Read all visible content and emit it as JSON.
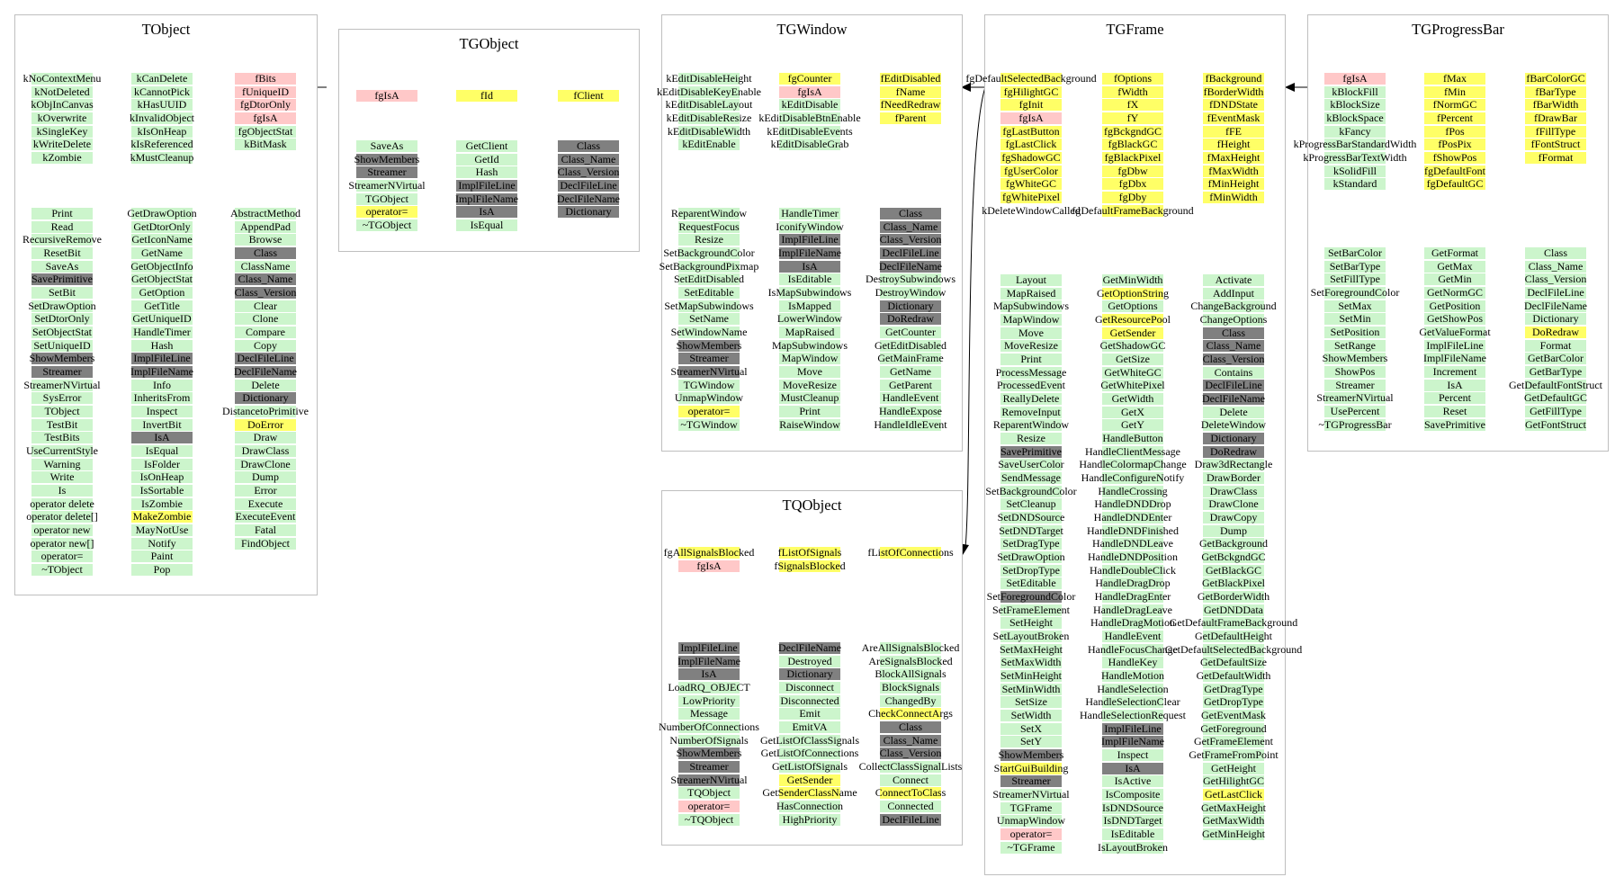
{
  "colors": {
    "public_member": "#ccf5cc",
    "highlighted": "#ffff66",
    "protected": "#ffc8c8",
    "private": "#808080",
    "border": "#bfbfbf"
  },
  "classes": [
    {
      "name": "TObject",
      "data_columns": [
        [
          "kNoContextMenu",
          "kNotDeleted",
          "kObjInCanvas",
          "kOverwrite",
          "kSingleKey",
          "kWriteDelete",
          "kZombie"
        ],
        [
          "kCanDelete",
          "kCannotPick",
          "kHasUUID",
          "kInvalidObject",
          "kIsOnHeap",
          "kIsReferenced",
          "kMustCleanup"
        ],
        [
          "fBits",
          "fUniqueID",
          "fgDtorOnly",
          "fgIsA",
          "fgObjectStat",
          "kBitMask"
        ]
      ],
      "method_columns": [
        [
          "Print",
          "Read",
          "RecursiveRemove",
          "ResetBit",
          "SaveAs",
          "SavePrimitive",
          "SetBit",
          "SetDrawOption",
          "SetDtorOnly",
          "SetObjectStat",
          "SetUniqueID",
          "ShowMembers",
          "Streamer",
          "StreamerNVirtual",
          "SysError",
          "TObject",
          "TestBit",
          "TestBits",
          "UseCurrentStyle",
          "Warning",
          "Write",
          "Is",
          "operator delete",
          "operator delete[]",
          "operator new",
          "operator new[]",
          "operator=",
          "~TObject"
        ],
        [
          "GetDrawOption",
          "GetDtorOnly",
          "GetIconName",
          "GetName",
          "GetObjectInfo",
          "GetObjectStat",
          "GetOption",
          "GetTitle",
          "GetUniqueID",
          "HandleTimer",
          "Hash",
          "ImplFileLine",
          "ImplFileName",
          "Info",
          "InheritsFrom",
          "Inspect",
          "InvertBit",
          "IsA",
          "IsEqual",
          "IsFolder",
          "IsOnHeap",
          "IsSortable",
          "IsZombie",
          "MakeZombie",
          "MayNotUse",
          "Notify",
          "Paint",
          "Pop"
        ],
        [
          "AbstractMethod",
          "AppendPad",
          "Browse",
          "Class",
          "ClassName",
          "Class_Name",
          "Class_Version",
          "Clear",
          "Clone",
          "Compare",
          "Copy",
          "DeclFileLine",
          "DeclFileName",
          "Delete",
          "Dictionary",
          "DistancetoPrimitive",
          "DoError",
          "Draw",
          "DrawClass",
          "DrawClone",
          "Dump",
          "Error",
          "Execute",
          "ExecuteEvent",
          "Fatal",
          "FindObject"
        ]
      ]
    },
    {
      "name": "TGObject",
      "data_columns": [
        [
          "fgIsA"
        ],
        [
          "fId"
        ],
        [
          "fClient"
        ]
      ],
      "method_columns": [
        [
          "SaveAs",
          "ShowMembers",
          "Streamer",
          "StreamerNVirtual",
          "TGObject",
          "operator=",
          "~TGObject"
        ],
        [
          "GetClient",
          "GetId",
          "Hash",
          "ImplFileLine",
          "ImplFileName",
          "IsA",
          "IsEqual"
        ],
        [
          "Class",
          "Class_Name",
          "Class_Version",
          "DeclFileLine",
          "DeclFileName",
          "Dictionary"
        ]
      ]
    },
    {
      "name": "TGWindow",
      "data_columns": [
        [
          "kEditDisableHeight",
          "kEditDisableKeyEnable",
          "kEditDisableLayout",
          "kEditDisableResize",
          "kEditDisableWidth",
          "kEditEnable"
        ],
        [
          "fgCounter",
          "fgIsA",
          "kEditDisable",
          "kEditDisableBtnEnable",
          "kEditDisableEvents",
          "kEditDisableGrab"
        ],
        [
          "fEditDisabled",
          "fName",
          "fNeedRedraw",
          "fParent"
        ]
      ],
      "method_columns": [
        [
          "ReparentWindow",
          "RequestFocus",
          "Resize",
          "SetBackgroundColor",
          "SetBackgroundPixmap",
          "SetEditDisabled",
          "SetEditable",
          "SetMapSubwindows",
          "SetName",
          "SetWindowName",
          "ShowMembers",
          "Streamer",
          "StreamerNVirtual",
          "TGWindow",
          "UnmapWindow",
          "operator=",
          "~TGWindow"
        ],
        [
          "HandleTimer",
          "IconifyWindow",
          "ImplFileLine",
          "ImplFileName",
          "IsA",
          "IsEditable",
          "IsMapSubwindows",
          "IsMapped",
          "LowerWindow",
          "MapRaised",
          "MapSubwindows",
          "MapWindow",
          "Move",
          "MoveResize",
          "MustCleanup",
          "Print",
          "RaiseWindow"
        ],
        [
          "Class",
          "Class_Name",
          "Class_Version",
          "DeclFileLine",
          "DeclFileName",
          "DestroySubwindows",
          "DestroyWindow",
          "Dictionary",
          "DoRedraw",
          "GetCounter",
          "GetEditDisabled",
          "GetMainFrame",
          "GetName",
          "GetParent",
          "HandleEvent",
          "HandleExpose",
          "HandleIdleEvent"
        ]
      ]
    },
    {
      "name": "TGFrame",
      "data_columns": [
        [
          "fgDefaultSelectedBackground",
          "fgHilightGC",
          "fgInit",
          "fgIsA",
          "fgLastButton",
          "fgLastClick",
          "fgShadowGC",
          "fgUserColor",
          "fgWhiteGC",
          "fgWhitePixel",
          "kDeleteWindowCalled"
        ],
        [
          "fOptions",
          "fWidth",
          "fX",
          "fY",
          "fgBckgndGC",
          "fgBlackGC",
          "fgBlackPixel",
          "fgDbw",
          "fgDbx",
          "fgDby",
          "fgDefaultFrameBackground"
        ],
        [
          "fBackground",
          "fBorderWidth",
          "fDNDState",
          "fEventMask",
          "fFE",
          "fHeight",
          "fMaxHeight",
          "fMaxWidth",
          "fMinHeight",
          "fMinWidth"
        ]
      ],
      "method_columns": [
        [
          "Layout",
          "MapRaised",
          "MapSubwindows",
          "MapWindow",
          "Move",
          "MoveResize",
          "Print",
          "ProcessMessage",
          "ProcessedEvent",
          "ReallyDelete",
          "RemoveInput",
          "ReparentWindow",
          "Resize",
          "SavePrimitive",
          "SaveUserColor",
          "SendMessage",
          "SetBackgroundColor",
          "SetCleanup",
          "SetDNDSource",
          "SetDNDTarget",
          "SetDragType",
          "SetDrawOption",
          "SetDropType",
          "SetEditable",
          "SetForegroundColor",
          "SetFrameElement",
          "SetHeight",
          "SetLayoutBroken",
          "SetMaxHeight",
          "SetMaxWidth",
          "SetMinHeight",
          "SetMinWidth",
          "SetSize",
          "SetWidth",
          "SetX",
          "SetY",
          "ShowMembers",
          "StartGuiBuilding",
          "Streamer",
          "StreamerNVirtual",
          "TGFrame",
          "UnmapWindow",
          "operator=",
          "~TGFrame"
        ],
        [
          "GetMinWidth",
          "GetOptionString",
          "GetOptions",
          "GetResourcePool",
          "GetSender",
          "GetShadowGC",
          "GetSize",
          "GetWhiteGC",
          "GetWhitePixel",
          "GetWidth",
          "GetX",
          "GetY",
          "HandleButton",
          "HandleClientMessage",
          "HandleColormapChange",
          "HandleConfigureNotify",
          "HandleCrossing",
          "HandleDNDDrop",
          "HandleDNDEnter",
          "HandleDNDFinished",
          "HandleDNDLeave",
          "HandleDNDPosition",
          "HandleDoubleClick",
          "HandleDragDrop",
          "HandleDragEnter",
          "HandleDragLeave",
          "HandleDragMotion",
          "HandleEvent",
          "HandleFocusChange",
          "HandleKey",
          "HandleMotion",
          "HandleSelection",
          "HandleSelectionClear",
          "HandleSelectionRequest",
          "ImplFileLine",
          "ImplFileName",
          "Inspect",
          "IsA",
          "IsActive",
          "IsComposite",
          "IsDNDSource",
          "IsDNDTarget",
          "IsEditable",
          "IsLayoutBroken"
        ],
        [
          "Activate",
          "AddInput",
          "ChangeBackground",
          "ChangeOptions",
          "Class",
          "Class_Name",
          "Class_Version",
          "Contains",
          "DeclFileLine",
          "DeclFileName",
          "Delete",
          "DeleteWindow",
          "Dictionary",
          "DoRedraw",
          "Draw3dRectangle",
          "DrawBorder",
          "DrawClass",
          "DrawClone",
          "DrawCopy",
          "Dump",
          "GetBackground",
          "GetBckgndGC",
          "GetBlackGC",
          "GetBlackPixel",
          "GetBorderWidth",
          "GetDNDData",
          "GetDefaultFrameBackground",
          "GetDefaultHeight",
          "GetDefaultSelectedBackground",
          "GetDefaultSize",
          "GetDefaultWidth",
          "GetDragType",
          "GetDropType",
          "GetEventMask",
          "GetForeground",
          "GetFrameElement",
          "GetFrameFromPoint",
          "GetHeight",
          "GetHilightGC",
          "GetLastClick",
          "GetMaxHeight",
          "GetMaxWidth",
          "GetMinHeight"
        ]
      ]
    },
    {
      "name": "TGProgressBar",
      "data_columns": [
        [
          "fgIsA",
          "kBlockFill",
          "kBlockSize",
          "kBlockSpace",
          "kFancy",
          "kProgressBarStandardWidth",
          "kProgressBarTextWidth",
          "kSolidFill",
          "kStandard"
        ],
        [
          "fMax",
          "fMin",
          "fNormGC",
          "fPercent",
          "fPos",
          "fPosPix",
          "fShowPos",
          "fgDefaultFont",
          "fgDefaultGC"
        ],
        [
          "fBarColorGC",
          "fBarType",
          "fBarWidth",
          "fDrawBar",
          "fFillType",
          "fFontStruct",
          "fFormat"
        ]
      ],
      "method_columns": [
        [
          "SetBarColor",
          "SetBarType",
          "SetFillType",
          "SetForegroundColor",
          "SetMax",
          "SetMin",
          "SetPosition",
          "SetRange",
          "ShowMembers",
          "ShowPos",
          "Streamer",
          "StreamerNVirtual",
          "UsePercent",
          "~TGProgressBar"
        ],
        [
          "GetFormat",
          "GetMax",
          "GetMin",
          "GetNormGC",
          "GetPosition",
          "GetShowPos",
          "GetValueFormat",
          "ImplFileLine",
          "ImplFileName",
          "Increment",
          "IsA",
          "Percent",
          "Reset",
          "SavePrimitive"
        ],
        [
          "Class",
          "Class_Name",
          "Class_Version",
          "DeclFileLine",
          "DeclFileName",
          "Dictionary",
          "DoRedraw",
          "Format",
          "GetBarColor",
          "GetBarType",
          "GetDefaultFontStruct",
          "GetDefaultGC",
          "GetFillType",
          "GetFontStruct"
        ]
      ]
    },
    {
      "name": "TQObject",
      "data_columns": [
        [
          "fgAllSignalsBlocked",
          "fgIsA"
        ],
        [
          "fListOfSignals",
          "fSignalsBlocked"
        ],
        [
          "fListOfConnections"
        ]
      ],
      "method_columns": [
        [
          "ImplFileLine",
          "ImplFileName",
          "IsA",
          "LoadRQ_OBJECT",
          "LowPriority",
          "Message",
          "NumberOfConnections",
          "NumberOfSignals",
          "ShowMembers",
          "Streamer",
          "StreamerNVirtual",
          "TQObject",
          "operator=",
          "~TQObject"
        ],
        [
          "DeclFileName",
          "Destroyed",
          "Dictionary",
          "Disconnect",
          "Disconnected",
          "Emit",
          "EmitVA",
          "GetListOfClassSignals",
          "GetListOfConnections",
          "GetListOfSignals",
          "GetSender",
          "GetSenderClassName",
          "HasConnection",
          "HighPriority"
        ],
        [
          "AreAllSignalsBlocked",
          "AreSignalsBlocked",
          "BlockAllSignals",
          "BlockSignals",
          "ChangedBy",
          "CheckConnectArgs",
          "Class",
          "Class_Name",
          "Class_Version",
          "CollectClassSignalLists",
          "Connect",
          "ConnectToClass",
          "Connected",
          "DeclFileLine"
        ]
      ]
    }
  ]
}
